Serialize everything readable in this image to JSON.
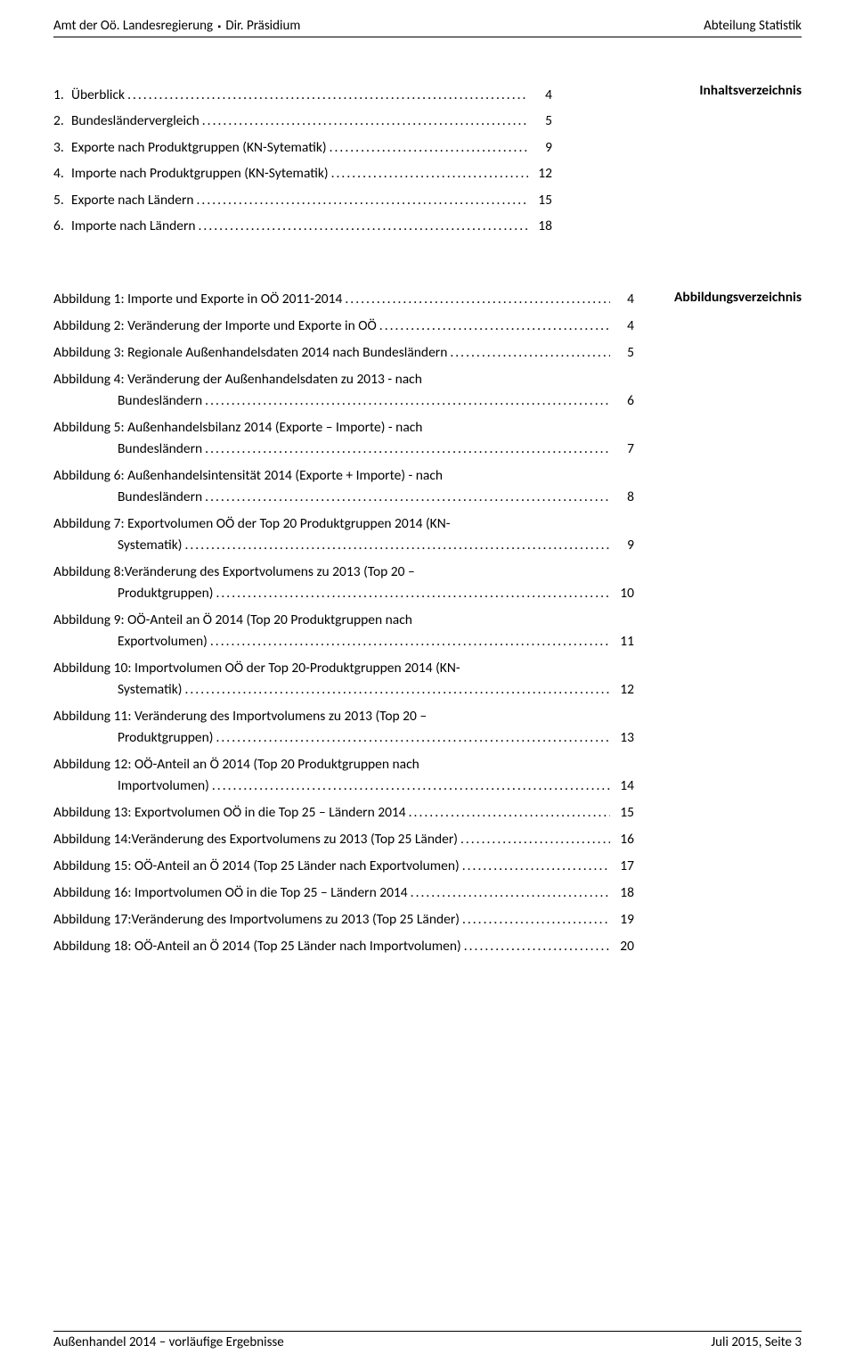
{
  "header": {
    "left_a": "Amt der Oö. Landesregierung",
    "left_b": "Dir. Präsidium",
    "right": "Abteilung Statistik"
  },
  "labels": {
    "toc": "Inhaltsverzeichnis",
    "figlist": "Abbildungsverzeichnis"
  },
  "toc": [
    {
      "num": "1.",
      "title": "Überblick",
      "page": "4"
    },
    {
      "num": "2.",
      "title": "Bundesländervergleich",
      "page": "5"
    },
    {
      "num": "3.",
      "title": "Exporte nach Produktgruppen (KN-Sytematik)",
      "page": "9"
    },
    {
      "num": "4.",
      "title": "Importe nach Produktgruppen (KN-Sytematik)",
      "page": "12"
    },
    {
      "num": "5.",
      "title": "Exporte nach Ländern",
      "page": "15"
    },
    {
      "num": "6.",
      "title": "Importe nach Ländern",
      "page": "18"
    }
  ],
  "figs": [
    {
      "lines": [
        "Abbildung 1: Importe und Exporte in OÖ 2011-2014"
      ],
      "page": "4"
    },
    {
      "lines": [
        "Abbildung 2: Veränderung der Importe und Exporte in OÖ"
      ],
      "page": "4"
    },
    {
      "lines": [
        "Abbildung 3: Regionale Außenhandelsdaten 2014 nach Bundesländern"
      ],
      "page": "5"
    },
    {
      "lines": [
        "Abbildung 4: Veränderung der Außenhandelsdaten zu 2013 - nach",
        "Bundesländern"
      ],
      "page": "6"
    },
    {
      "lines": [
        "Abbildung 5: Außenhandelsbilanz 2014 (Exporte – Importe) - nach",
        "Bundesländern"
      ],
      "page": "7"
    },
    {
      "lines": [
        "Abbildung 6: Außenhandelsintensität 2014 (Exporte + Importe) - nach",
        "Bundesländern"
      ],
      "page": "8"
    },
    {
      "lines": [
        "Abbildung 7: Exportvolumen OÖ der Top 20 Produktgruppen 2014 (KN-",
        "Systematik)"
      ],
      "page": "9"
    },
    {
      "lines": [
        "Abbildung 8:Veränderung des Exportvolumens zu 2013 (Top 20 –",
        "Produktgruppen)"
      ],
      "page": "10"
    },
    {
      "lines": [
        "Abbildung 9: OÖ-Anteil an Ö 2014 (Top 20 Produktgruppen nach",
        "Exportvolumen)"
      ],
      "page": "11"
    },
    {
      "lines": [
        "Abbildung 10: Importvolumen OÖ der Top 20-Produktgruppen 2014 (KN-",
        "Systematik)"
      ],
      "page": "12"
    },
    {
      "lines": [
        "Abbildung 11: Veränderung des Importvolumens zu 2013 (Top 20 –",
        "Produktgruppen)"
      ],
      "page": "13"
    },
    {
      "lines": [
        "Abbildung 12: OÖ-Anteil an Ö 2014 (Top 20 Produktgruppen nach",
        "Importvolumen)"
      ],
      "page": "14"
    },
    {
      "lines": [
        "Abbildung 13: Exportvolumen OÖ in die Top 25 – Ländern 2014"
      ],
      "page": "15"
    },
    {
      "lines": [
        "Abbildung 14:Veränderung des Exportvolumens zu 2013 (Top 25 Länder)"
      ],
      "page": "16"
    },
    {
      "lines": [
        "Abbildung 15: OÖ-Anteil an Ö 2014 (Top 25 Länder nach Exportvolumen)"
      ],
      "page": "17"
    },
    {
      "lines": [
        "Abbildung 16: Importvolumen OÖ in die Top 25 – Ländern 2014"
      ],
      "page": "18"
    },
    {
      "lines": [
        "Abbildung 17:Veränderung des Importvolumens zu 2013 (Top 25 Länder)"
      ],
      "page": "19"
    },
    {
      "lines": [
        "Abbildung 18: OÖ-Anteil an Ö 2014 (Top 25 Länder nach Importvolumen)"
      ],
      "page": "20"
    }
  ],
  "footer": {
    "left": "Außenhandel 2014 – vorläufige Ergebnisse",
    "right": "Juli 2015, Seite 3"
  }
}
